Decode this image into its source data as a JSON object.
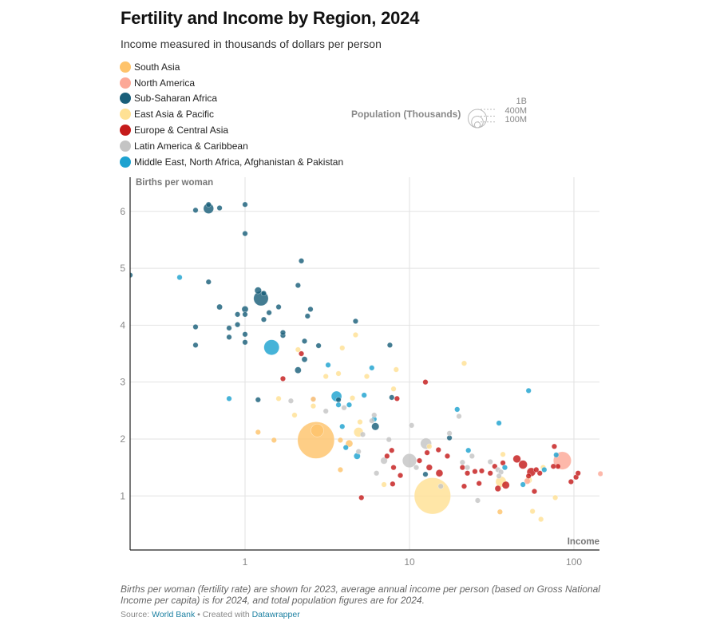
{
  "header": {
    "title": "Fertility and Income by Region, 2024",
    "subtitle": "Income measured in thousands of dollars per person"
  },
  "legend": [
    {
      "label": "South Asia",
      "color": "#fec36b"
    },
    {
      "label": "North America",
      "color": "#fca897"
    },
    {
      "label": "Sub-Saharan Africa",
      "color": "#1a5f7a"
    },
    {
      "label": "East Asia & Pacific",
      "color": "#ffe194"
    },
    {
      "label": "Europe & Central Asia",
      "color": "#c51b1b"
    },
    {
      "label": "Latin America & Caribbean",
      "color": "#c4c4c4"
    },
    {
      "label": "Middle East, North Africa, Afghanistan & Pakistan",
      "color": "#1da2d0"
    }
  ],
  "size_legend": {
    "title": "Population (Thousands)",
    "entries": [
      {
        "label": "1B",
        "value_millions": 1000
      },
      {
        "label": "400M",
        "value_millions": 400
      },
      {
        "label": "100M",
        "value_millions": 100
      }
    ]
  },
  "footer": {
    "note": "Births per woman (fertility rate) are shown for 2023, average annual income per person (based on Gross National Income per capita) is for 2024, and total population figures are for 2024.",
    "source_prefix": "Source: ",
    "source_link": "World Bank",
    "separator": " • Created with ",
    "tool_link": "Datawrapper"
  },
  "chart_data": {
    "type": "scatter",
    "title": "Fertility and Income by Region, 2024",
    "subtitle": "Income measured in thousands of dollars per person",
    "xlabel": "Income",
    "ylabel": "Births per woman",
    "xscale": "log",
    "xlim": [
      0.2,
      143
    ],
    "ylim": [
      0.05,
      6.6
    ],
    "xticks": [
      {
        "value": 1,
        "label": "1"
      },
      {
        "value": 10,
        "label": "10"
      },
      {
        "value": 100,
        "label": "100"
      }
    ],
    "yticks": [
      {
        "value": 1,
        "label": "1"
      },
      {
        "value": 2,
        "label": "2"
      },
      {
        "value": 3,
        "label": "3"
      },
      {
        "value": 4,
        "label": "4"
      },
      {
        "value": 5,
        "label": "5"
      },
      {
        "value": 6,
        "label": "6"
      }
    ],
    "grid": true,
    "legend_position": "top-left",
    "size_variable": "Population (millions)",
    "regions": {
      "SA": "South Asia",
      "NA": "North America",
      "SSA": "Sub-Saharan Africa",
      "EAP": "East Asia & Pacific",
      "ECA": "Europe & Central Asia",
      "LAC": "Latin America & Caribbean",
      "MENA": "Middle East, North Africa, Afghanistan & Pakistan"
    },
    "points": [
      {
        "r": "SSA",
        "x": 0.2,
        "y": 4.88,
        "pop": 12
      },
      {
        "r": "SSA",
        "x": 0.5,
        "y": 6.02,
        "pop": 8
      },
      {
        "r": "SSA",
        "x": 0.6,
        "y": 6.12,
        "pop": 20
      },
      {
        "r": "SSA",
        "x": 0.6,
        "y": 6.05,
        "pop": 110
      },
      {
        "r": "SSA",
        "x": 0.7,
        "y": 6.06,
        "pop": 25
      },
      {
        "r": "SSA",
        "x": 1.0,
        "y": 6.12,
        "pop": 18
      },
      {
        "r": "SSA",
        "x": 1.0,
        "y": 5.61,
        "pop": 20
      },
      {
        "r": "SSA",
        "x": 0.6,
        "y": 4.76,
        "pop": 25
      },
      {
        "r": "SSA",
        "x": 0.7,
        "y": 4.32,
        "pop": 35
      },
      {
        "r": "SSA",
        "x": 0.5,
        "y": 3.97,
        "pop": 25
      },
      {
        "r": "SSA",
        "x": 0.5,
        "y": 3.65,
        "pop": 20
      },
      {
        "r": "SSA",
        "x": 0.8,
        "y": 3.95,
        "pop": 10
      },
      {
        "r": "SSA",
        "x": 0.8,
        "y": 3.79,
        "pop": 12
      },
      {
        "r": "SSA",
        "x": 0.9,
        "y": 4.19,
        "pop": 20
      },
      {
        "r": "SSA",
        "x": 0.9,
        "y": 4.01,
        "pop": 10
      },
      {
        "r": "SSA",
        "x": 1.0,
        "y": 4.28,
        "pop": 45
      },
      {
        "r": "SSA",
        "x": 1.0,
        "y": 4.19,
        "pop": 15
      },
      {
        "r": "SSA",
        "x": 1.0,
        "y": 3.84,
        "pop": 10
      },
      {
        "r": "SSA",
        "x": 1.0,
        "y": 3.7,
        "pop": 12
      },
      {
        "r": "SSA",
        "x": 1.2,
        "y": 4.61,
        "pop": 50
      },
      {
        "r": "SSA",
        "x": 1.25,
        "y": 4.47,
        "pop": 230
      },
      {
        "r": "SSA",
        "x": 1.3,
        "y": 4.56,
        "pop": 20
      },
      {
        "r": "SSA",
        "x": 1.3,
        "y": 4.1,
        "pop": 15
      },
      {
        "r": "SSA",
        "x": 1.4,
        "y": 4.22,
        "pop": 15
      },
      {
        "r": "SSA",
        "x": 1.6,
        "y": 4.32,
        "pop": 28
      },
      {
        "r": "SSA",
        "x": 1.7,
        "y": 3.87,
        "pop": 10
      },
      {
        "r": "SSA",
        "x": 1.7,
        "y": 3.82,
        "pop": 15
      },
      {
        "r": "SSA",
        "x": 2.1,
        "y": 4.7,
        "pop": 12
      },
      {
        "r": "SSA",
        "x": 2.2,
        "y": 5.13,
        "pop": 30
      },
      {
        "r": "SSA",
        "x": 2.4,
        "y": 4.16,
        "pop": 10
      },
      {
        "r": "SSA",
        "x": 2.5,
        "y": 4.28,
        "pop": 30
      },
      {
        "r": "SSA",
        "x": 2.3,
        "y": 3.72,
        "pop": 22
      },
      {
        "r": "SSA",
        "x": 2.3,
        "y": 3.4,
        "pop": 35
      },
      {
        "r": "SSA",
        "x": 2.1,
        "y": 3.21,
        "pop": 45
      },
      {
        "r": "SSA",
        "x": 2.8,
        "y": 3.64,
        "pop": 10
      },
      {
        "r": "SSA",
        "x": 4.7,
        "y": 4.07,
        "pop": 10
      },
      {
        "r": "SSA",
        "x": 7.6,
        "y": 3.65,
        "pop": 10
      },
      {
        "r": "SSA",
        "x": 1.2,
        "y": 2.69,
        "pop": 8
      },
      {
        "r": "SSA",
        "x": 3.7,
        "y": 2.69,
        "pop": 10
      },
      {
        "r": "SSA",
        "x": 6.2,
        "y": 2.22,
        "pop": 60
      },
      {
        "r": "SSA",
        "x": 7.8,
        "y": 2.73,
        "pop": 10
      },
      {
        "r": "SSA",
        "x": 17.5,
        "y": 2.02,
        "pop": 8
      },
      {
        "r": "SSA",
        "x": 12.5,
        "y": 1.38,
        "pop": 8
      },
      {
        "r": "MENA",
        "x": 0.4,
        "y": 4.84,
        "pop": 30
      },
      {
        "r": "MENA",
        "x": 1.45,
        "y": 3.61,
        "pop": 250
      },
      {
        "r": "MENA",
        "x": 0.8,
        "y": 2.71,
        "pop": 20
      },
      {
        "r": "MENA",
        "x": 3.2,
        "y": 3.3,
        "pop": 10
      },
      {
        "r": "MENA",
        "x": 3.6,
        "y": 2.75,
        "pop": 115
      },
      {
        "r": "MENA",
        "x": 3.9,
        "y": 2.22,
        "pop": 20
      },
      {
        "r": "MENA",
        "x": 3.7,
        "y": 2.6,
        "pop": 10
      },
      {
        "r": "MENA",
        "x": 4.1,
        "y": 1.85,
        "pop": 10
      },
      {
        "r": "MENA",
        "x": 4.3,
        "y": 2.6,
        "pop": 12
      },
      {
        "r": "MENA",
        "x": 4.8,
        "y": 1.7,
        "pop": 45
      },
      {
        "r": "MENA",
        "x": 5.3,
        "y": 2.77,
        "pop": 30
      },
      {
        "r": "MENA",
        "x": 5.9,
        "y": 3.25,
        "pop": 25
      },
      {
        "r": "MENA",
        "x": 6.1,
        "y": 2.35,
        "pop": 12
      },
      {
        "r": "MENA",
        "x": 19.5,
        "y": 2.52,
        "pop": 10
      },
      {
        "r": "MENA",
        "x": 22.8,
        "y": 1.8,
        "pop": 10
      },
      {
        "r": "MENA",
        "x": 35.0,
        "y": 2.28,
        "pop": 15
      },
      {
        "r": "MENA",
        "x": 53.0,
        "y": 2.85,
        "pop": 10
      },
      {
        "r": "MENA",
        "x": 38.0,
        "y": 1.5,
        "pop": 8
      },
      {
        "r": "MENA",
        "x": 49.0,
        "y": 1.2,
        "pop": 10
      },
      {
        "r": "MENA",
        "x": 66.0,
        "y": 1.46,
        "pop": 10
      },
      {
        "r": "MENA",
        "x": 78.0,
        "y": 1.72,
        "pop": 8
      },
      {
        "r": "SA",
        "x": 2.7,
        "y": 1.98,
        "pop": 1440
      },
      {
        "r": "SA",
        "x": 2.75,
        "y": 2.15,
        "pop": 175
      },
      {
        "r": "SA",
        "x": 1.2,
        "y": 2.12,
        "pop": 25
      },
      {
        "r": "SA",
        "x": 1.5,
        "y": 1.98,
        "pop": 20
      },
      {
        "r": "SA",
        "x": 3.8,
        "y": 1.98,
        "pop": 22
      },
      {
        "r": "SA",
        "x": 4.3,
        "y": 1.92,
        "pop": 55
      },
      {
        "r": "SA",
        "x": 3.8,
        "y": 1.46,
        "pop": 8
      },
      {
        "r": "SA",
        "x": 35.5,
        "y": 0.72,
        "pop": 15
      },
      {
        "r": "EAP",
        "x": 13.8,
        "y": 1.0,
        "pop": 1410
      },
      {
        "r": "EAP",
        "x": 4.9,
        "y": 2.12,
        "pop": 95
      },
      {
        "r": "EAP",
        "x": 7.0,
        "y": 1.2,
        "pop": 25
      },
      {
        "r": "EAP",
        "x": 2.6,
        "y": 2.7,
        "pop": 8
      },
      {
        "r": "EAP",
        "x": 2.1,
        "y": 3.57,
        "pop": 10
      },
      {
        "r": "EAP",
        "x": 1.6,
        "y": 2.71,
        "pop": 8
      },
      {
        "r": "EAP",
        "x": 2.0,
        "y": 2.42,
        "pop": 12
      },
      {
        "r": "EAP",
        "x": 2.6,
        "y": 2.58,
        "pop": 8
      },
      {
        "r": "EAP",
        "x": 3.1,
        "y": 3.1,
        "pop": 12
      },
      {
        "r": "EAP",
        "x": 3.7,
        "y": 3.15,
        "pop": 10
      },
      {
        "r": "EAP",
        "x": 3.9,
        "y": 3.6,
        "pop": 8
      },
      {
        "r": "EAP",
        "x": 4.7,
        "y": 3.83,
        "pop": 8
      },
      {
        "r": "EAP",
        "x": 4.5,
        "y": 2.72,
        "pop": 10
      },
      {
        "r": "EAP",
        "x": 5.5,
        "y": 3.1,
        "pop": 8
      },
      {
        "r": "EAP",
        "x": 8.3,
        "y": 3.22,
        "pop": 8
      },
      {
        "r": "EAP",
        "x": 8.0,
        "y": 2.88,
        "pop": 10
      },
      {
        "r": "EAP",
        "x": 5.0,
        "y": 2.3,
        "pop": 8
      },
      {
        "r": "EAP",
        "x": 21.5,
        "y": 3.33,
        "pop": 8
      },
      {
        "r": "EAP",
        "x": 13.2,
        "y": 1.87,
        "pop": 12
      },
      {
        "r": "EAP",
        "x": 37.0,
        "y": 1.73,
        "pop": 8
      },
      {
        "r": "EAP",
        "x": 36.0,
        "y": 1.25,
        "pop": 120
      },
      {
        "r": "EAP",
        "x": 65.0,
        "y": 1.5,
        "pop": 30
      },
      {
        "r": "EAP",
        "x": 53.0,
        "y": 1.28,
        "pop": 52
      },
      {
        "r": "EAP",
        "x": 77.0,
        "y": 0.97,
        "pop": 10
      },
      {
        "r": "EAP",
        "x": 56.0,
        "y": 0.73,
        "pop": 10
      },
      {
        "r": "EAP",
        "x": 63.0,
        "y": 0.59,
        "pop": 8
      },
      {
        "r": "NA",
        "x": 85.0,
        "y": 1.62,
        "pop": 340
      },
      {
        "r": "NA",
        "x": 52.0,
        "y": 1.26,
        "pop": 40
      },
      {
        "r": "NA",
        "x": 145.0,
        "y": 1.39,
        "pop": 8
      },
      {
        "r": "ECA",
        "x": 2.6,
        "y": 2.7,
        "pop": 12
      },
      {
        "r": "ECA",
        "x": 2.2,
        "y": 3.5,
        "pop": 20
      },
      {
        "r": "ECA",
        "x": 1.7,
        "y": 3.06,
        "pop": 12
      },
      {
        "r": "ECA",
        "x": 5.1,
        "y": 0.97,
        "pop": 25
      },
      {
        "r": "ECA",
        "x": 7.3,
        "y": 1.7,
        "pop": 10
      },
      {
        "r": "ECA",
        "x": 7.8,
        "y": 1.8,
        "pop": 10
      },
      {
        "r": "ECA",
        "x": 8.0,
        "y": 1.5,
        "pop": 10
      },
      {
        "r": "ECA",
        "x": 7.9,
        "y": 1.21,
        "pop": 10
      },
      {
        "r": "ECA",
        "x": 8.4,
        "y": 2.71,
        "pop": 10
      },
      {
        "r": "ECA",
        "x": 8.8,
        "y": 1.36,
        "pop": 10
      },
      {
        "r": "ECA",
        "x": 12.5,
        "y": 3.0,
        "pop": 12
      },
      {
        "r": "ECA",
        "x": 11.5,
        "y": 1.62,
        "pop": 10
      },
      {
        "r": "ECA",
        "x": 12.8,
        "y": 1.76,
        "pop": 10
      },
      {
        "r": "ECA",
        "x": 13.2,
        "y": 1.5,
        "pop": 40
      },
      {
        "r": "ECA",
        "x": 15.2,
        "y": 1.4,
        "pop": 55
      },
      {
        "r": "ECA",
        "x": 15.0,
        "y": 1.81,
        "pop": 10
      },
      {
        "r": "ECA",
        "x": 17.0,
        "y": 1.7,
        "pop": 10
      },
      {
        "r": "ECA",
        "x": 21.0,
        "y": 1.5,
        "pop": 10
      },
      {
        "r": "ECA",
        "x": 21.5,
        "y": 1.17,
        "pop": 25
      },
      {
        "r": "ECA",
        "x": 22.5,
        "y": 1.4,
        "pop": 10
      },
      {
        "r": "ECA",
        "x": 25.0,
        "y": 1.43,
        "pop": 10
      },
      {
        "r": "ECA",
        "x": 27.5,
        "y": 1.44,
        "pop": 10
      },
      {
        "r": "ECA",
        "x": 26.5,
        "y": 1.22,
        "pop": 10
      },
      {
        "r": "ECA",
        "x": 33.0,
        "y": 1.52,
        "pop": 10
      },
      {
        "r": "ECA",
        "x": 31.0,
        "y": 1.4,
        "pop": 10
      },
      {
        "r": "ECA",
        "x": 34.5,
        "y": 1.13,
        "pop": 40
      },
      {
        "r": "ECA",
        "x": 38.5,
        "y": 1.19,
        "pop": 60
      },
      {
        "r": "ECA",
        "x": 37.0,
        "y": 1.58,
        "pop": 10
      },
      {
        "r": "ECA",
        "x": 45.0,
        "y": 1.65,
        "pop": 65
      },
      {
        "r": "ECA",
        "x": 49.0,
        "y": 1.55,
        "pop": 80
      },
      {
        "r": "ECA",
        "x": 55.0,
        "y": 1.42,
        "pop": 80
      },
      {
        "r": "ECA",
        "x": 53.0,
        "y": 1.35,
        "pop": 12
      },
      {
        "r": "ECA",
        "x": 59.0,
        "y": 1.46,
        "pop": 12
      },
      {
        "r": "ECA",
        "x": 62.0,
        "y": 1.4,
        "pop": 20
      },
      {
        "r": "ECA",
        "x": 57.5,
        "y": 1.08,
        "pop": 10
      },
      {
        "r": "ECA",
        "x": 76.0,
        "y": 1.87,
        "pop": 10
      },
      {
        "r": "ECA",
        "x": 80.0,
        "y": 1.52,
        "pop": 10
      },
      {
        "r": "ECA",
        "x": 75.0,
        "y": 1.52,
        "pop": 10
      },
      {
        "r": "ECA",
        "x": 96.0,
        "y": 1.25,
        "pop": 10
      },
      {
        "r": "ECA",
        "x": 103.0,
        "y": 1.33,
        "pop": 10
      },
      {
        "r": "ECA",
        "x": 106.0,
        "y": 1.4,
        "pop": 10
      },
      {
        "r": "LAC",
        "x": 10.0,
        "y": 1.62,
        "pop": 210
      },
      {
        "r": "LAC",
        "x": 12.6,
        "y": 1.92,
        "pop": 130
      },
      {
        "r": "LAC",
        "x": 7.0,
        "y": 1.62,
        "pop": 50
      },
      {
        "r": "LAC",
        "x": 7.5,
        "y": 1.99,
        "pop": 25
      },
      {
        "r": "LAC",
        "x": 6.1,
        "y": 2.42,
        "pop": 8
      },
      {
        "r": "LAC",
        "x": 5.9,
        "y": 2.32,
        "pop": 12
      },
      {
        "r": "LAC",
        "x": 4.9,
        "y": 1.78,
        "pop": 12
      },
      {
        "r": "LAC",
        "x": 5.2,
        "y": 2.08,
        "pop": 8
      },
      {
        "r": "LAC",
        "x": 3.1,
        "y": 2.49,
        "pop": 10
      },
      {
        "r": "LAC",
        "x": 1.9,
        "y": 2.67,
        "pop": 10
      },
      {
        "r": "LAC",
        "x": 4.0,
        "y": 2.55,
        "pop": 12
      },
      {
        "r": "LAC",
        "x": 6.3,
        "y": 1.4,
        "pop": 10
      },
      {
        "r": "LAC",
        "x": 10.3,
        "y": 2.24,
        "pop": 10
      },
      {
        "r": "LAC",
        "x": 11.0,
        "y": 1.5,
        "pop": 15
      },
      {
        "r": "LAC",
        "x": 15.5,
        "y": 1.17,
        "pop": 30
      },
      {
        "r": "LAC",
        "x": 17.5,
        "y": 2.1,
        "pop": 8
      },
      {
        "r": "LAC",
        "x": 20.0,
        "y": 2.4,
        "pop": 10
      },
      {
        "r": "LAC",
        "x": 21.0,
        "y": 1.59,
        "pop": 10
      },
      {
        "r": "LAC",
        "x": 22.5,
        "y": 1.5,
        "pop": 10
      },
      {
        "r": "LAC",
        "x": 24.0,
        "y": 1.7,
        "pop": 8
      },
      {
        "r": "LAC",
        "x": 26.0,
        "y": 0.92,
        "pop": 10
      },
      {
        "r": "LAC",
        "x": 31.0,
        "y": 1.6,
        "pop": 10
      },
      {
        "r": "LAC",
        "x": 34.5,
        "y": 1.46,
        "pop": 10
      },
      {
        "r": "LAC",
        "x": 36.0,
        "y": 1.42,
        "pop": 10
      },
      {
        "r": "LAC",
        "x": 35.0,
        "y": 1.35,
        "pop": 10
      }
    ]
  }
}
